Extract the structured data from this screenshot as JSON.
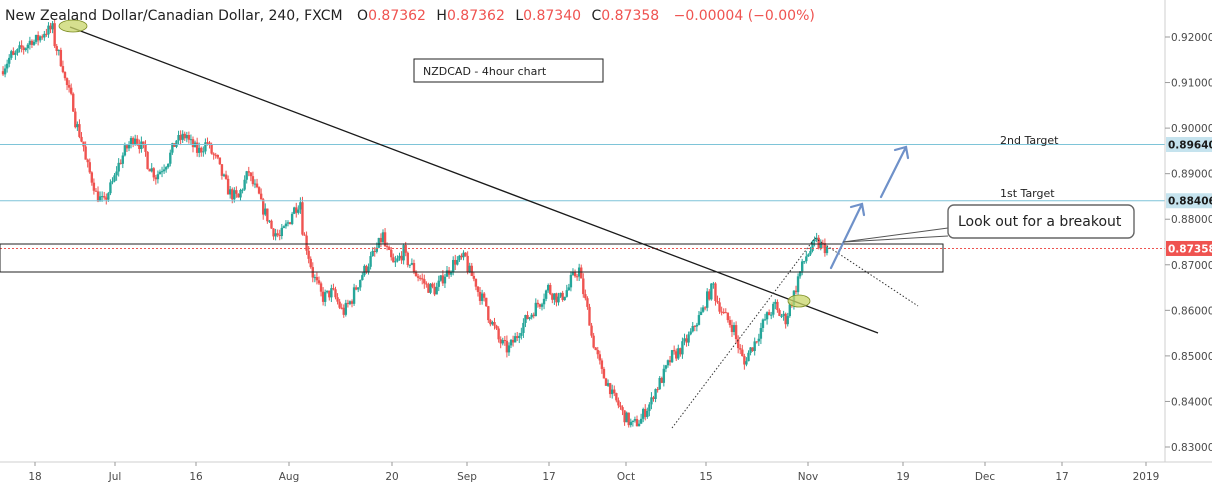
{
  "chart_data": {
    "type": "candlestick",
    "header": {
      "symbol": "New Zealand Dollar/Canadian Dollar, 240, FXCM",
      "open_label": "O",
      "open": "0.87362",
      "high_label": "H",
      "high": "0.87362",
      "low_label": "L",
      "low": "0.87340",
      "close_label": "C",
      "close": "0.87358",
      "change": "−0.00004 (−0.00%)"
    },
    "ylim": [
      0.8285,
      0.9255
    ],
    "y_ticks": [
      "0.92000",
      "0.91000",
      "0.90000",
      "0.89000",
      "0.88000",
      "0.87000",
      "0.86000",
      "0.85000",
      "0.84000",
      "0.83000"
    ],
    "x_ticks": [
      "18",
      "Jul",
      "16",
      "Aug",
      "20",
      "Sep",
      "17",
      "Oct",
      "15",
      "Nov",
      "19",
      "Dec",
      "17",
      "2019"
    ],
    "price_tags": {
      "target2": "0.89640",
      "target1": "0.88406",
      "current": "0.87358"
    },
    "levels": {
      "target2": 0.8964,
      "target1": 0.88406,
      "current": 0.87358
    },
    "annotations": {
      "title_box": "NZDCAD - 4hour chart",
      "second_target": "2nd Target",
      "first_target": "1st Target",
      "callout": "Look out for a breakout"
    },
    "colors": {
      "up": "#26a69a",
      "down": "#ef5350",
      "target_line": "#7ec4d8",
      "tag_blue": "#c5e3ee",
      "tag_red": "#ef5350",
      "arrow": "#6f91c9",
      "highlight": "#c8d66a"
    },
    "price_path": [
      [
        0.9125,
        0.916
      ],
      [
        0.915,
        0.9175
      ],
      [
        0.917,
        0.9195
      ],
      [
        0.9185,
        0.9205
      ],
      [
        0.921,
        0.9218
      ],
      [
        0.92,
        0.9135
      ],
      [
        0.912,
        0.905
      ],
      [
        0.903,
        0.896
      ],
      [
        0.894,
        0.8875
      ],
      [
        0.886,
        0.8835
      ],
      [
        0.884,
        0.889
      ],
      [
        0.89,
        0.895
      ],
      [
        0.895,
        0.8985
      ],
      [
        0.898,
        0.8945
      ],
      [
        0.893,
        0.8895
      ],
      [
        0.8895,
        0.8925
      ],
      [
        0.892,
        0.8975
      ],
      [
        0.897,
        0.8985
      ],
      [
        0.8975,
        0.895
      ],
      [
        0.8945,
        0.897
      ],
      [
        0.896,
        0.8925
      ],
      [
        0.892,
        0.8865
      ],
      [
        0.886,
        0.8845
      ],
      [
        0.885,
        0.8905
      ],
      [
        0.8895,
        0.885
      ],
      [
        0.884,
        0.8795
      ],
      [
        0.8785,
        0.876
      ],
      [
        0.876,
        0.88
      ],
      [
        0.881,
        0.884
      ],
      [
        0.88,
        0.87
      ],
      [
        0.869,
        0.8635
      ],
      [
        0.8625,
        0.864
      ],
      [
        0.8645,
        0.86
      ],
      [
        0.859,
        0.8625
      ],
      [
        0.863,
        0.868
      ],
      [
        0.868,
        0.872
      ],
      [
        0.8715,
        0.8765
      ],
      [
        0.875,
        0.87
      ],
      [
        0.8695,
        0.873
      ],
      [
        0.872,
        0.869
      ],
      [
        0.8685,
        0.866
      ],
      [
        0.8655,
        0.8645
      ],
      [
        0.864,
        0.868
      ],
      [
        0.8675,
        0.871
      ],
      [
        0.8705,
        0.8715
      ],
      [
        0.87,
        0.866
      ],
      [
        0.865,
        0.861
      ],
      [
        0.86,
        0.855
      ],
      [
        0.854,
        0.8515
      ],
      [
        0.851,
        0.8545
      ],
      [
        0.855,
        0.8585
      ],
      [
        0.858,
        0.8615
      ],
      [
        0.861,
        0.865
      ],
      [
        0.8645,
        0.8625
      ],
      [
        0.862,
        0.865
      ],
      [
        0.866,
        0.869
      ],
      [
        0.868,
        0.858
      ],
      [
        0.856,
        0.848
      ],
      [
        0.847,
        0.843
      ],
      [
        0.842,
        0.8385
      ],
      [
        0.838,
        0.835
      ],
      [
        0.8345,
        0.836
      ],
      [
        0.8365,
        0.84
      ],
      [
        0.841,
        0.845
      ],
      [
        0.845,
        0.85
      ],
      [
        0.8495,
        0.852
      ],
      [
        0.852,
        0.8555
      ],
      [
        0.856,
        0.86
      ],
      [
        0.861,
        0.8655
      ],
      [
        0.864,
        0.859
      ],
      [
        0.859,
        0.856
      ],
      [
        0.855,
        0.848
      ],
      [
        0.849,
        0.853
      ],
      [
        0.853,
        0.858
      ],
      [
        0.858,
        0.861
      ],
      [
        0.86,
        0.858
      ],
      [
        0.858,
        0.865
      ],
      [
        0.866,
        0.872
      ],
      [
        0.872,
        0.875
      ],
      [
        0.8745,
        0.8736
      ]
    ]
  }
}
